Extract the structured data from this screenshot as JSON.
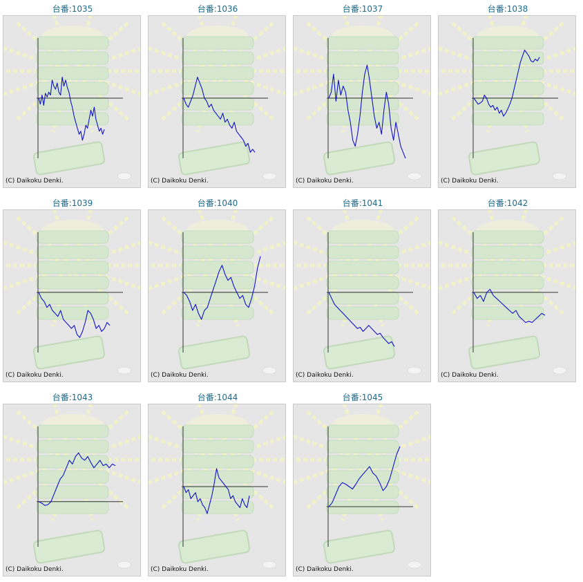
{
  "copyright": "(C) Daikoku Denki.",
  "colors": {
    "line": "#1010c8",
    "axis": "#333333",
    "title": "#1d6a8c",
    "panel": "#e6e6e6"
  },
  "chart_data": [
    {
      "type": "line",
      "title": "台番:1035",
      "ylim": [
        -1,
        1
      ],
      "values": [
        0.0,
        -0.1,
        0.05,
        -0.12,
        0.08,
        0.02,
        0.1,
        0.05,
        0.3,
        0.2,
        0.15,
        0.25,
        0.1,
        0.05,
        0.35,
        0.2,
        0.3,
        0.18,
        0.1,
        -0.05,
        -0.15,
        -0.3,
        -0.4,
        -0.5,
        -0.6,
        -0.55,
        -0.7,
        -0.6,
        -0.45,
        -0.5,
        -0.35,
        -0.2,
        -0.3,
        -0.15,
        -0.35,
        -0.45,
        -0.55,
        -0.5,
        -0.6,
        -0.52
      ]
    },
    {
      "type": "line",
      "title": "台番:1036",
      "ylim": [
        -1,
        1
      ],
      "values": [
        0.0,
        -0.1,
        -0.15,
        -0.05,
        0.05,
        0.2,
        0.35,
        0.25,
        0.15,
        0.0,
        -0.05,
        -0.15,
        -0.1,
        -0.2,
        -0.25,
        -0.3,
        -0.35,
        -0.25,
        -0.4,
        -0.35,
        -0.45,
        -0.5,
        -0.4,
        -0.55,
        -0.6,
        -0.65,
        -0.7,
        -0.8,
        -0.75,
        -0.9,
        -0.85,
        -0.9
      ]
    },
    {
      "type": "line",
      "title": "台番:1037",
      "ylim": [
        -1,
        1
      ],
      "values": [
        0.0,
        0.1,
        0.4,
        -0.05,
        0.3,
        0.05,
        0.2,
        0.1,
        -0.2,
        -0.4,
        -0.7,
        -0.8,
        -0.6,
        -0.3,
        0.1,
        0.4,
        0.55,
        0.3,
        0.0,
        -0.3,
        -0.5,
        -0.4,
        -0.6,
        -0.2,
        0.1,
        -0.1,
        -0.5,
        -0.7,
        -0.4,
        -0.6,
        -0.8,
        -0.9,
        -1.0
      ]
    },
    {
      "type": "line",
      "title": "台番:1038",
      "ylim": [
        -1,
        1
      ],
      "values": [
        0.0,
        -0.05,
        -0.1,
        -0.08,
        -0.05,
        0.05,
        0.0,
        -0.1,
        -0.15,
        -0.12,
        -0.2,
        -0.15,
        -0.25,
        -0.2,
        -0.3,
        -0.25,
        -0.18,
        -0.1,
        0.0,
        0.15,
        0.3,
        0.45,
        0.6,
        0.7,
        0.8,
        0.75,
        0.7,
        0.62,
        0.6,
        0.65,
        0.62,
        0.68
      ]
    },
    {
      "type": "line",
      "title": "台番:1039",
      "ylim": [
        -1,
        1
      ],
      "values": [
        0.0,
        -0.1,
        -0.15,
        -0.25,
        -0.2,
        -0.3,
        -0.35,
        -0.4,
        -0.3,
        -0.45,
        -0.5,
        -0.55,
        -0.6,
        -0.55,
        -0.7,
        -0.75,
        -0.65,
        -0.5,
        -0.3,
        -0.35,
        -0.45,
        -0.6,
        -0.55,
        -0.65,
        -0.6,
        -0.5,
        -0.55
      ]
    },
    {
      "type": "line",
      "title": "台番:1040",
      "ylim": [
        -1,
        1
      ],
      "values": [
        0.0,
        -0.05,
        -0.15,
        -0.3,
        -0.2,
        -0.35,
        -0.45,
        -0.3,
        -0.25,
        -0.1,
        0.05,
        0.2,
        0.35,
        0.45,
        0.3,
        0.2,
        0.25,
        0.1,
        0.0,
        -0.1,
        -0.05,
        -0.2,
        -0.25,
        -0.1,
        0.1,
        0.4,
        0.6
      ]
    },
    {
      "type": "line",
      "title": "台番:1041",
      "ylim": [
        -1,
        1
      ],
      "values": [
        0.0,
        -0.1,
        -0.2,
        -0.25,
        -0.3,
        -0.35,
        -0.4,
        -0.45,
        -0.5,
        -0.55,
        -0.6,
        -0.58,
        -0.65,
        -0.6,
        -0.55,
        -0.6,
        -0.65,
        -0.7,
        -0.68,
        -0.75,
        -0.8,
        -0.85,
        -0.82,
        -0.9
      ]
    },
    {
      "type": "line",
      "title": "台番:1042",
      "ylim": [
        -1,
        1
      ],
      "values": [
        0.0,
        -0.1,
        -0.05,
        -0.15,
        0.0,
        0.05,
        -0.05,
        -0.1,
        -0.15,
        -0.2,
        -0.25,
        -0.3,
        -0.35,
        -0.3,
        -0.4,
        -0.45,
        -0.5,
        -0.48,
        -0.5,
        -0.45,
        -0.4,
        -0.35,
        -0.38
      ]
    },
    {
      "type": "line",
      "title": "台番:1043",
      "ylim": [
        -0.6,
        1
      ],
      "values": [
        0.0,
        -0.02,
        -0.05,
        -0.04,
        0.0,
        0.1,
        0.2,
        0.3,
        0.35,
        0.45,
        0.55,
        0.5,
        0.6,
        0.65,
        0.58,
        0.55,
        0.6,
        0.52,
        0.45,
        0.5,
        0.55,
        0.48,
        0.5,
        0.45,
        0.5,
        0.48
      ]
    },
    {
      "type": "line",
      "title": "台番:1044",
      "ylim": [
        -1,
        1
      ],
      "values": [
        0.0,
        -0.1,
        -0.05,
        -0.2,
        -0.15,
        -0.1,
        -0.25,
        -0.2,
        -0.3,
        -0.35,
        -0.45,
        -0.3,
        -0.15,
        0.05,
        0.3,
        0.15,
        0.1,
        0.05,
        0.0,
        -0.05,
        -0.2,
        -0.15,
        -0.25,
        -0.3,
        -0.35,
        -0.2,
        -0.3,
        -0.35,
        -0.15
      ]
    },
    {
      "type": "line",
      "title": "台番:1045",
      "ylim": [
        -0.5,
        1
      ],
      "values": [
        0.0,
        0.05,
        0.15,
        0.25,
        0.3,
        0.28,
        0.25,
        0.22,
        0.28,
        0.35,
        0.4,
        0.45,
        0.5,
        0.42,
        0.38,
        0.3,
        0.2,
        0.25,
        0.35,
        0.5,
        0.65,
        0.75
      ]
    }
  ]
}
